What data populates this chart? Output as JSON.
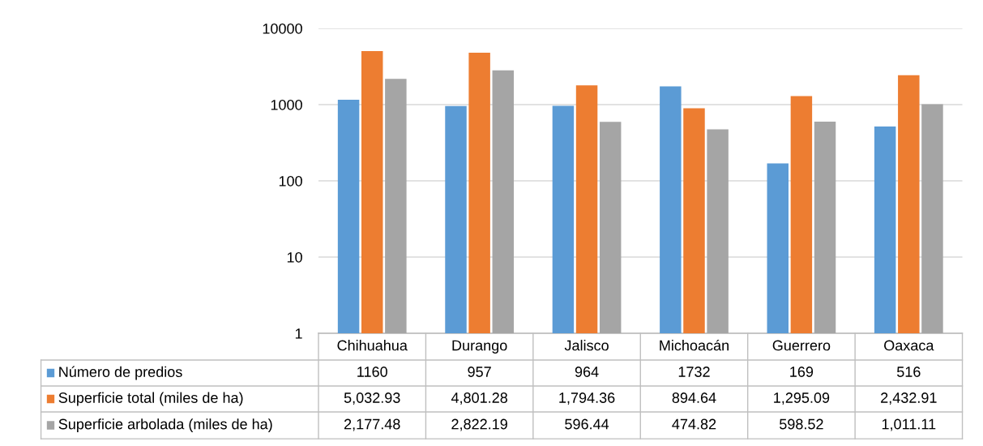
{
  "chart_data": {
    "type": "bar",
    "categories": [
      "Chihuahua",
      "Durango",
      "Jalisco",
      "Michoacán",
      "Guerrero",
      "Oaxaca"
    ],
    "series": [
      {
        "name": "Número de predios",
        "color": "#5b9bd5",
        "values": [
          1160,
          957,
          964,
          1732,
          169,
          516
        ],
        "value_labels": [
          "1160",
          "957",
          "964",
          "1732",
          "169",
          "516"
        ]
      },
      {
        "name": "Superficie total (miles de ha)",
        "color": "#ed7d31",
        "values": [
          5032.93,
          4801.28,
          1794.36,
          894.64,
          1295.09,
          2432.91
        ],
        "value_labels": [
          "5,032.93",
          "4,801.28",
          "1,794.36",
          "894.64",
          "1,295.09",
          "2,432.91"
        ]
      },
      {
        "name": "Superficie arbolada (miles de ha)",
        "color": "#a5a5a5",
        "values": [
          2177.48,
          2822.19,
          596.44,
          474.82,
          598.52,
          1011.11
        ],
        "value_labels": [
          "2,177.48",
          "2,822.19",
          "596.44",
          "474.82",
          "598.52",
          "1,011.11"
        ]
      }
    ],
    "log": "y",
    "ylim": [
      1,
      10000
    ],
    "yticks": [
      1,
      10,
      100,
      1000,
      10000
    ],
    "grid": "y",
    "legend": "bottom"
  }
}
